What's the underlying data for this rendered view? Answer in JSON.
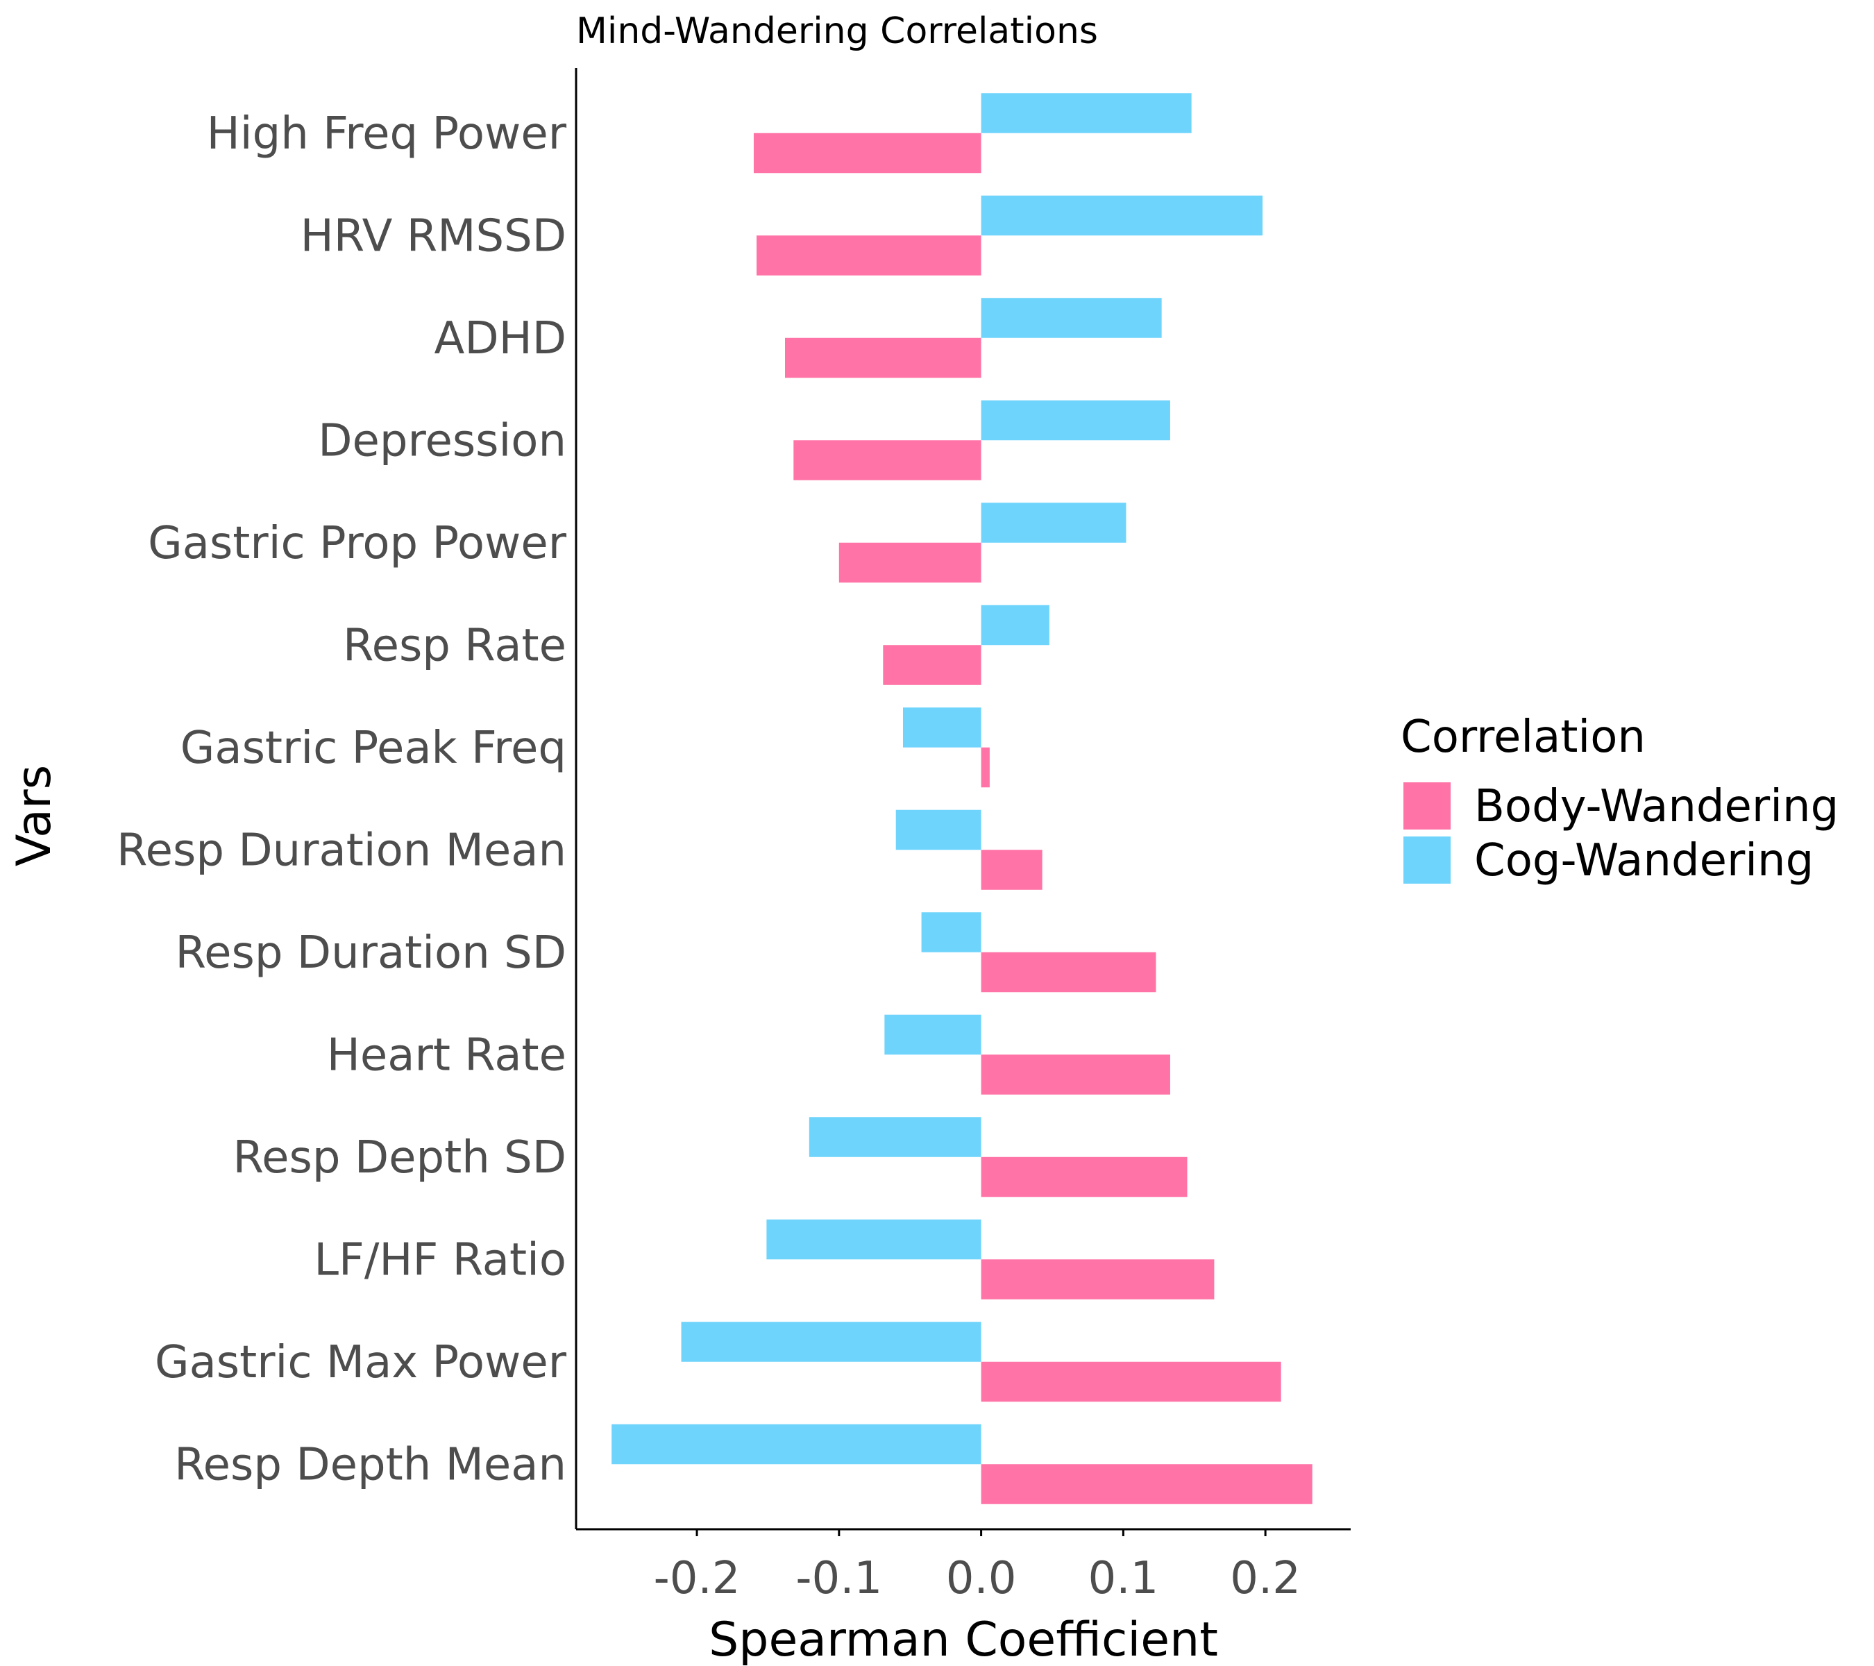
{
  "chart_data": {
    "type": "bar",
    "orientation": "horizontal",
    "title": "Mind-Wandering Correlations",
    "xlabel": "Spearman Coefficient",
    "ylabel": "Vars",
    "xlim": [
      -0.285,
      0.26
    ],
    "xticks": [
      -0.2,
      -0.1,
      0.0,
      0.1,
      0.2
    ],
    "xtick_labels": [
      "-0.2",
      "-0.1",
      "0.0",
      "0.1",
      "0.2"
    ],
    "grid": false,
    "legend": {
      "title": "Correlation",
      "placement": "right"
    },
    "categories": [
      "High Freq Power",
      "HRV RMSSD",
      "ADHD",
      "Depression",
      "Gastric Prop Power",
      "Resp Rate",
      "Gastric Peak Freq",
      "Resp Duration Mean",
      "Resp Duration SD",
      "Heart Rate",
      "Resp Depth SD",
      "LF/HF Ratio",
      "Gastric Max Power",
      "Resp Depth Mean"
    ],
    "series": [
      {
        "name": "Cog-Wandering",
        "color": "#6fd4fc",
        "values": [
          0.148,
          0.198,
          0.127,
          0.133,
          0.102,
          0.048,
          -0.055,
          -0.06,
          -0.042,
          -0.068,
          -0.121,
          -0.151,
          -0.211,
          -0.26
        ]
      },
      {
        "name": "Body-Wandering",
        "color": "#ff73a6",
        "values": [
          -0.16,
          -0.158,
          -0.138,
          -0.132,
          -0.1,
          -0.069,
          0.006,
          0.043,
          0.123,
          0.133,
          0.145,
          0.164,
          0.211,
          0.233
        ]
      }
    ]
  }
}
